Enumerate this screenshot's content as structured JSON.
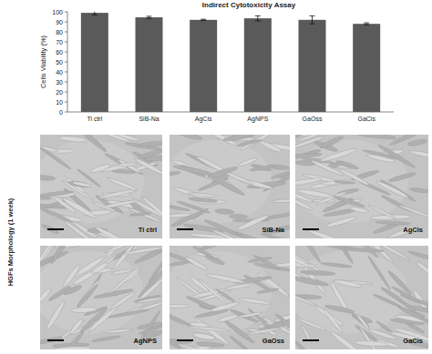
{
  "chart_data": {
    "type": "bar",
    "title": "Indirect Cytotoxicity Assay",
    "y_label": "Cells Viability (%)",
    "categories": [
      "Ti ctrl",
      "SiB-Na",
      "AgCis",
      "AgNPS",
      "GaOss",
      "GaCis"
    ],
    "values": [
      99,
      94.5,
      92,
      93.5,
      92,
      88
    ],
    "errors": [
      2,
      1,
      0.6,
      2.5,
      4,
      1
    ],
    "color": "#5a5a5a",
    "ylim": [
      0,
      100
    ],
    "yticks": [
      0,
      10,
      20,
      30,
      40,
      50,
      60,
      70,
      80,
      90,
      100
    ],
    "grid": false
  },
  "figure": {
    "side_label": "HGFs Morphology (1 week)",
    "panels": [
      {
        "label": "Ti ctrl"
      },
      {
        "label": "SiB-Na"
      },
      {
        "label": "AgCis"
      },
      {
        "label": "AgNPS"
      },
      {
        "label": "GaOss"
      },
      {
        "label": "GaCis"
      }
    ]
  }
}
